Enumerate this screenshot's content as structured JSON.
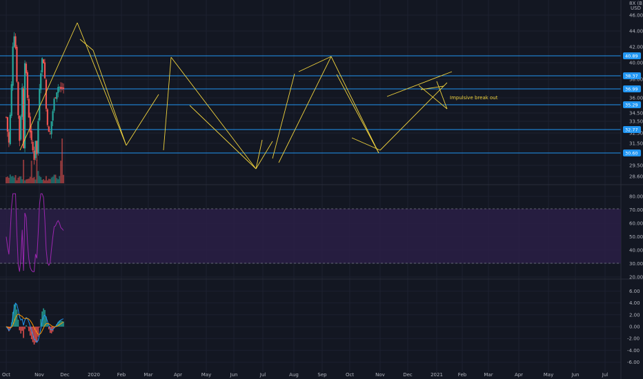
{
  "axis_header": {
    "line1": "8X (B)",
    "line2": "USD"
  },
  "price_axis": {
    "ticks": [
      46.0,
      44.0,
      42.0,
      40.0,
      38.0,
      36.0,
      34.5,
      33.5,
      32.5,
      31.5,
      29.5,
      28.6
    ]
  },
  "price_levels": [
    {
      "value": 40.89,
      "label": "40.89"
    },
    {
      "value": 38.37,
      "label": "38.37"
    },
    {
      "value": 36.99,
      "label": "36.99"
    },
    {
      "value": 35.29,
      "label": "35.29"
    },
    {
      "value": 32.77,
      "label": "32.77"
    },
    {
      "value": 30.6,
      "label": "30.60"
    }
  ],
  "annotation": "Impulsive break out",
  "rsi_axis": {
    "ticks": [
      80.0,
      70.0,
      60.0,
      50.0,
      40.0,
      30.0,
      20.0
    ]
  },
  "macd_axis": {
    "ticks": [
      6.0,
      4.0,
      2.0,
      0.0,
      -2.0,
      -4.0,
      -6.0
    ]
  },
  "time_axis": {
    "labels": [
      "Oct",
      "Nov",
      "Dec",
      "2020",
      "Feb",
      "Mar",
      "Apr",
      "May",
      "Jun",
      "Jul",
      "Aug",
      "Sep",
      "Oct",
      "Nov",
      "Dec",
      "2021",
      "Feb",
      "Mar",
      "Apr",
      "May",
      "Jun",
      "Jul"
    ]
  },
  "colors": {
    "background": "#131722",
    "up": "#26a69a",
    "down": "#ef5350",
    "level_line": "#2196f3",
    "trendline": "#f2d43d",
    "rsi_line": "#9c27b0",
    "rsi_band": "#2a1e45",
    "macd_line": "#2196f3",
    "signal_line": "#ff9800"
  },
  "chart_data": {
    "type": "candlestick",
    "price_path": [
      [
        0,
        34.0
      ],
      [
        0.05,
        32.6
      ],
      [
        0.09,
        31.2
      ],
      [
        0.18,
        36.2
      ],
      [
        0.26,
        44.6
      ],
      [
        0.31,
        42.8
      ],
      [
        0.33,
        42.2
      ],
      [
        0.45,
        32.5
      ],
      [
        0.48,
        31.8
      ],
      [
        0.56,
        36.3
      ],
      [
        0.6,
        38.8
      ],
      [
        0.62,
        31.3
      ],
      [
        0.65,
        38.6
      ],
      [
        0.67,
        40.6
      ],
      [
        0.74,
        37.0
      ],
      [
        0.8,
        34.5
      ],
      [
        0.9,
        31.5
      ],
      [
        1.0,
        30.2
      ],
      [
        1.05,
        32.0
      ],
      [
        1.1,
        30.3
      ],
      [
        1.15,
        34.0
      ],
      [
        1.2,
        38.0
      ],
      [
        1.3,
        40.8
      ],
      [
        1.36,
        39.8
      ],
      [
        1.42,
        35.2
      ],
      [
        1.48,
        33.5
      ],
      [
        1.55,
        31.7
      ],
      [
        1.62,
        33.5
      ],
      [
        1.7,
        35.5
      ],
      [
        1.8,
        36.8
      ],
      [
        1.88,
        37.4
      ],
      [
        1.95,
        36.8
      ],
      [
        2.0,
        37.2
      ],
      [
        2.03,
        35.8
      ],
      [
        2.05,
        36.99
      ]
    ]
  }
}
